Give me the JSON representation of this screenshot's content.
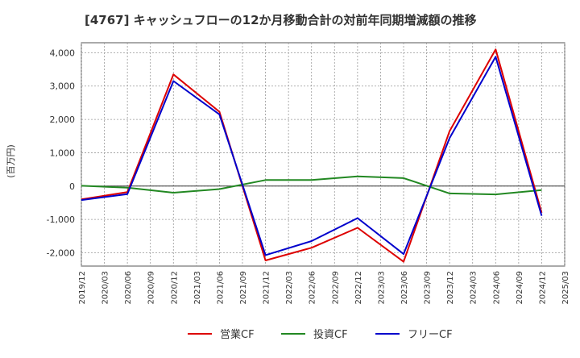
{
  "chart_data": {
    "type": "line",
    "title": "[4767]  キャッシュフローの12か月移動合計の対前年同期増減額の推移",
    "xlabel": "",
    "ylabel": "(百万円)",
    "ylim": [
      -2400,
      4300
    ],
    "yticks": [
      4000,
      3000,
      2000,
      1000,
      0,
      -1000,
      -2000
    ],
    "ytick_labels": [
      "4,000",
      "3,000",
      "2,000",
      "1,000",
      "0",
      "-1,000",
      "-2,000"
    ],
    "categories": [
      "2019/12",
      "2020/03",
      "2020/06",
      "2020/09",
      "2020/12",
      "2021/03",
      "2021/06",
      "2021/09",
      "2021/12",
      "2022/03",
      "2022/06",
      "2022/09",
      "2022/12",
      "2023/03",
      "2023/06",
      "2023/09",
      "2023/12",
      "2024/03",
      "2024/06",
      "2024/09",
      "2024/12",
      "2025/03"
    ],
    "grid": true,
    "legend_position": "bottom",
    "series": [
      {
        "name": "営業CF",
        "color": "#dd0000",
        "values": [
          -400,
          null,
          -180,
          null,
          3350,
          null,
          2230,
          null,
          -2230,
          null,
          -1850,
          null,
          -1250,
          null,
          -2270,
          null,
          1650,
          null,
          4100,
          null,
          -800,
          null
        ]
      },
      {
        "name": "投資CF",
        "color": "#228822",
        "values": [
          10,
          null,
          -50,
          null,
          -200,
          null,
          -90,
          null,
          180,
          null,
          180,
          null,
          290,
          null,
          240,
          null,
          -220,
          null,
          -250,
          null,
          -120,
          null
        ]
      },
      {
        "name": "フリーCF",
        "color": "#0000cc",
        "values": [
          -420,
          null,
          -240,
          null,
          3150,
          null,
          2150,
          null,
          -2070,
          null,
          -1650,
          null,
          -960,
          null,
          -2040,
          null,
          1440,
          null,
          3880,
          null,
          -890,
          null
        ]
      }
    ]
  }
}
